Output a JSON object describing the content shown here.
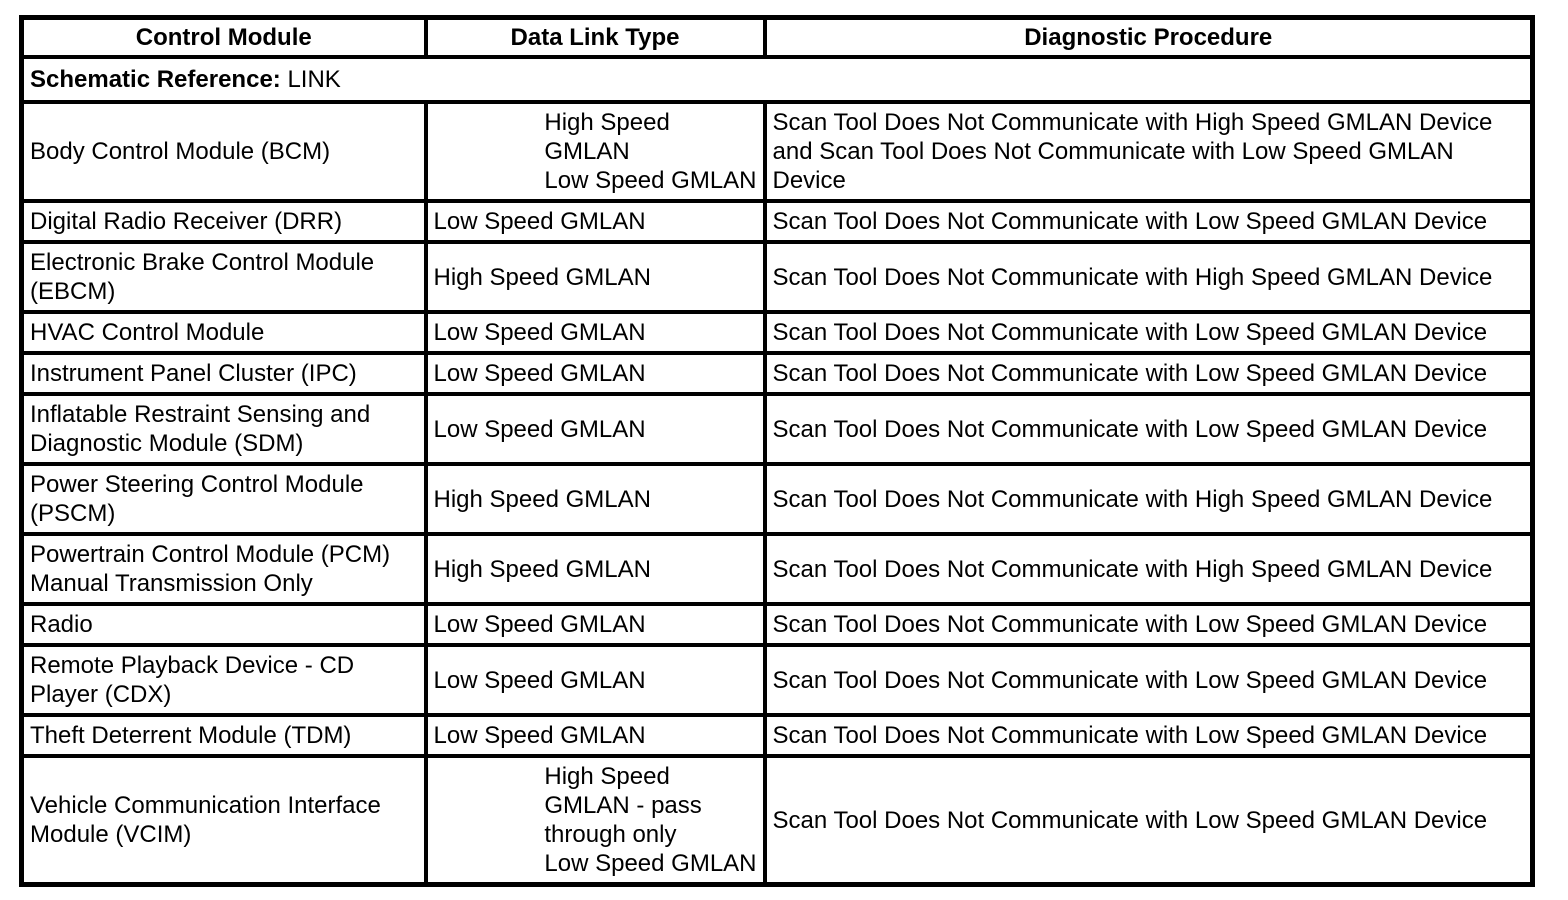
{
  "document": {
    "background_color": "#ffffff",
    "text_color": "#000000",
    "border_color": "#000000"
  },
  "table": {
    "headers": {
      "control_module": "Control Module",
      "data_link_type": "Data Link Type",
      "diagnostic_procedure": "Diagnostic Procedure"
    },
    "schematic_reference": {
      "label": "Schematic Reference:",
      "value": "LINK"
    },
    "rows": [
      {
        "module": "Body Control Module (BCM)",
        "data_link": "High Speed\nGMLAN\nLow Speed GMLAN",
        "data_link_block": true,
        "procedure": "Scan Tool Does Not Communicate with High Speed GMLAN Device and Scan Tool Does Not Communicate with Low Speed GMLAN Device"
      },
      {
        "module": "Digital Radio Receiver (DRR)",
        "data_link": "Low Speed GMLAN",
        "data_link_block": false,
        "procedure": "Scan Tool Does Not Communicate with Low Speed GMLAN Device"
      },
      {
        "module": "Electronic Brake Control Module (EBCM)",
        "data_link": "High Speed GMLAN",
        "data_link_block": false,
        "procedure": "Scan Tool Does Not Communicate with High Speed GMLAN Device"
      },
      {
        "module": "HVAC Control Module",
        "data_link": "Low Speed GMLAN",
        "data_link_block": false,
        "procedure": "Scan Tool Does Not Communicate with Low Speed GMLAN Device"
      },
      {
        "module": "Instrument Panel Cluster (IPC)",
        "data_link": "Low Speed GMLAN",
        "data_link_block": false,
        "procedure": "Scan Tool Does Not Communicate with Low Speed GMLAN Device"
      },
      {
        "module": "Inflatable Restraint Sensing and Diagnostic Module (SDM)",
        "data_link": "Low Speed GMLAN",
        "data_link_block": false,
        "procedure": "Scan Tool Does Not Communicate with Low Speed GMLAN Device"
      },
      {
        "module": "Power Steering Control Module (PSCM)",
        "data_link": "High Speed GMLAN",
        "data_link_block": false,
        "procedure": "Scan Tool Does Not Communicate with High Speed GMLAN Device"
      },
      {
        "module": "Powertrain Control Module (PCM) Manual Transmission Only",
        "data_link": "High Speed GMLAN",
        "data_link_block": false,
        "procedure": "Scan Tool Does Not Communicate with High Speed GMLAN Device"
      },
      {
        "module": "Radio",
        "data_link": "Low Speed GMLAN",
        "data_link_block": false,
        "procedure": "Scan Tool Does Not Communicate with Low Speed GMLAN Device"
      },
      {
        "module": "Remote Playback Device - CD Player (CDX)",
        "data_link": "Low Speed GMLAN",
        "data_link_block": false,
        "procedure": "Scan Tool Does Not Communicate with Low Speed GMLAN Device"
      },
      {
        "module": "Theft Deterrent Module (TDM)",
        "data_link": "Low Speed GMLAN",
        "data_link_block": false,
        "procedure": "Scan Tool Does Not Communicate with Low Speed GMLAN Device"
      },
      {
        "module": "Vehicle Communication Interface Module (VCIM)",
        "data_link": "High Speed\nGMLAN - pass\nthrough only\nLow Speed GMLAN",
        "data_link_block": true,
        "procedure": "Scan Tool Does Not Communicate with Low Speed GMLAN Device"
      }
    ]
  }
}
